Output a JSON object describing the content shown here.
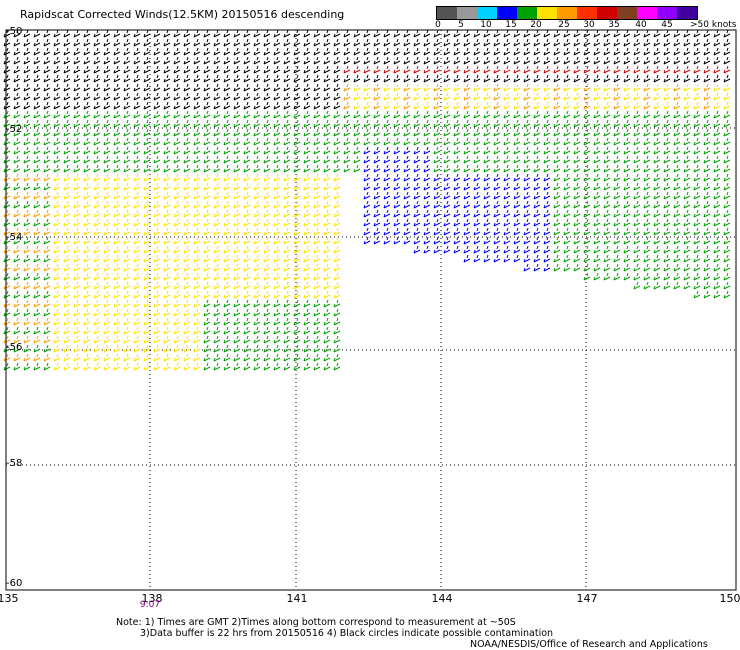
{
  "title": "Rapidscat Corrected Winds(12.5KM) 20150516 descending",
  "legend": {
    "ticks": [
      "0",
      "5",
      "10",
      "15",
      "20",
      "25",
      "30",
      "35",
      "40",
      "45",
      ">50 knots"
    ],
    "colors": [
      "#555555",
      "#999999",
      "#00d0ff",
      "#0000ff",
      "#00a000",
      "#ffe000",
      "#ff9a00",
      "#ff3000",
      "#d00000",
      "#804020",
      "#ff00ff",
      "#9000ff",
      "#4000a0"
    ]
  },
  "lat_labels": [
    "-50",
    "-52",
    "-54",
    "-56",
    "-58",
    "-60"
  ],
  "lon_labels": [
    "135",
    "138",
    "141",
    "144",
    "147",
    "150"
  ],
  "time_labels": [
    "9:07"
  ],
  "notes": {
    "line1": "Note: 1) Times are GMT 2)Times along bottom correspond to measurement at ~50S",
    "line2": "3)Data buffer is 22 hrs from 20150516 4) Black circles indicate possible contamination",
    "line3": "NOAA/NESDIS/Office of Research and Applications"
  }
}
